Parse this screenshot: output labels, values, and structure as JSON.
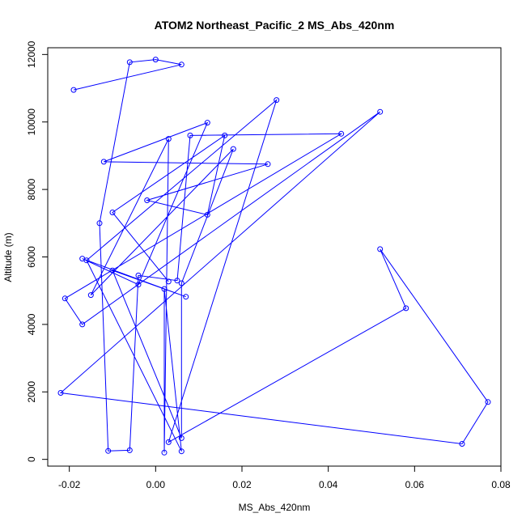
{
  "chart_data": {
    "type": "line",
    "title": "ATOM2 Northeast_Pacific_2 MS_Abs_420nm",
    "xlabel": "MS_Abs_420nm",
    "ylabel": "Altitude (m)",
    "xlim": [
      -0.025,
      0.08
    ],
    "ylim": [
      -200,
      12200
    ],
    "xticks": [
      -0.02,
      0.0,
      0.02,
      0.04,
      0.06,
      0.08
    ],
    "xtick_labels": [
      "-0.02",
      "0.00",
      "0.02",
      "0.04",
      "0.06",
      "0.08"
    ],
    "yticks": [
      0,
      2000,
      4000,
      6000,
      8000,
      10000,
      12000
    ],
    "ytick_labels": [
      "0",
      "2000",
      "4000",
      "6000",
      "8000",
      "10000",
      "12000"
    ],
    "line_color": "#0000ff",
    "marker": "open-circle",
    "grid": false,
    "legend": "none",
    "series": [
      {
        "x": [
          -0.019,
          0.006,
          0.0,
          -0.006,
          -0.013,
          -0.011,
          -0.006,
          -0.004,
          0.005,
          0.008,
          0.043,
          -0.021,
          -0.017,
          0.052,
          -0.022,
          0.071,
          0.077,
          0.052,
          0.058,
          0.003,
          0.028,
          -0.016,
          0.006,
          0.002,
          0.002,
          0.003,
          -0.015,
          0.018,
          0.006,
          0.006,
          -0.01,
          0.007,
          -0.017,
          -0.004,
          0.012,
          -0.012,
          0.026,
          -0.002,
          0.012,
          0.016,
          -0.01,
          0.003
        ],
        "y": [
          10950,
          11700,
          11850,
          11770,
          7000,
          250,
          270,
          5450,
          5300,
          9600,
          9650,
          4770,
          4000,
          10300,
          1970,
          460,
          1700,
          6230,
          4480,
          510,
          10650,
          5900,
          240,
          5050,
          200,
          9500,
          4870,
          9200,
          5220,
          630,
          5600,
          4820,
          5950,
          5180,
          9980,
          8820,
          8750,
          7680,
          7250,
          9600,
          7320,
          5270
        ]
      }
    ]
  }
}
